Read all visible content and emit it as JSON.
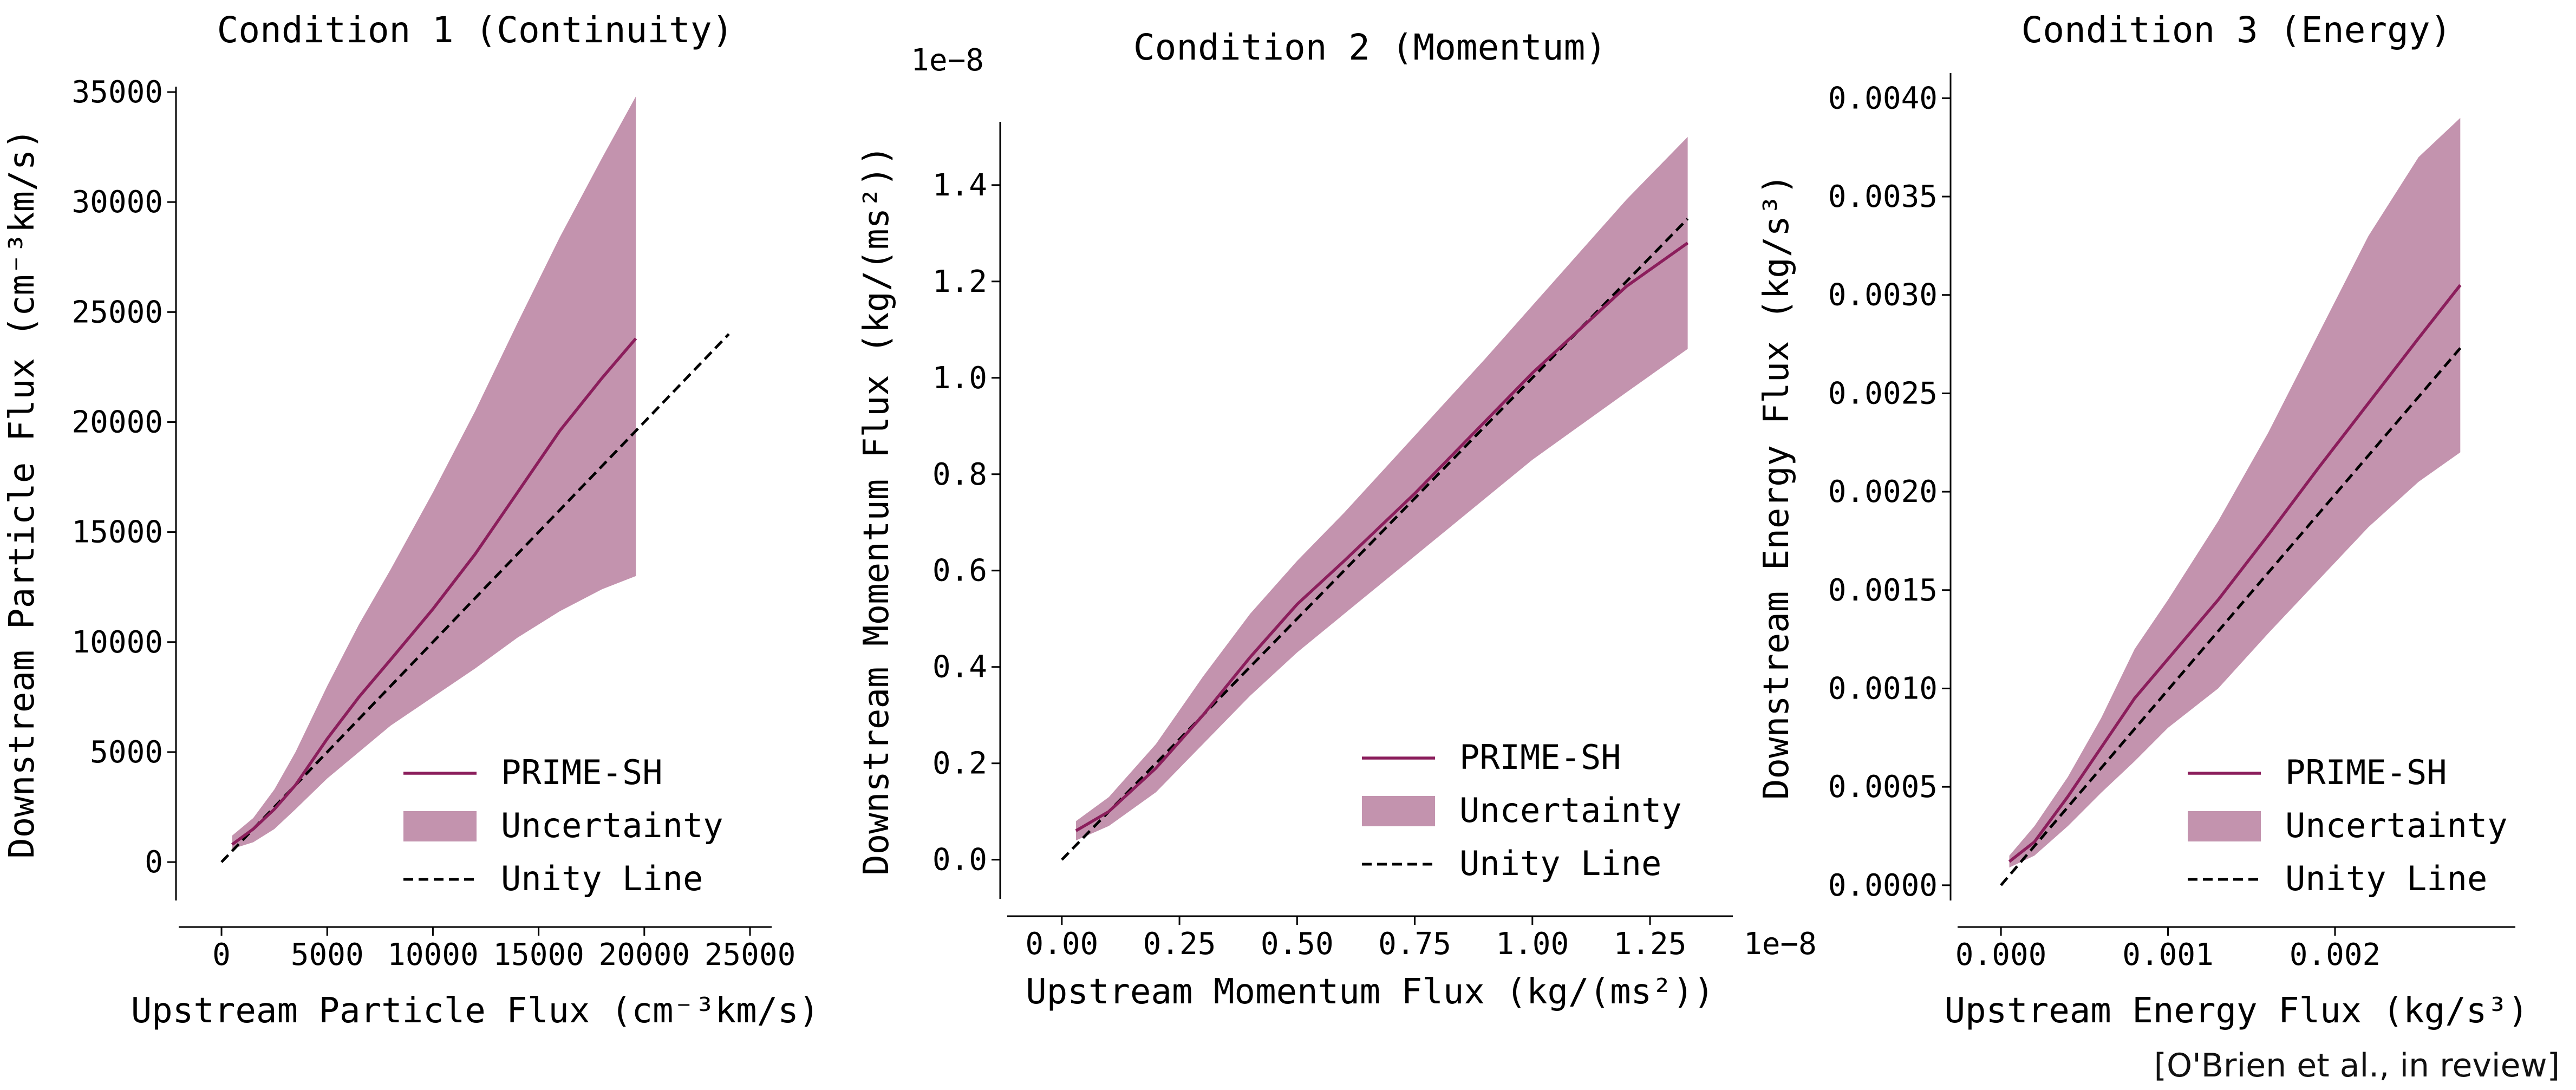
{
  "colors": {
    "line": "#8b1e5c",
    "band": "#c393ae",
    "unity": "#000000",
    "axis": "#000000"
  },
  "credit": "[O'Brien et al., in review]",
  "legend_labels": {
    "line": "PRIME-SH",
    "band": "Uncertainty",
    "unity": "Unity Line"
  },
  "chart_data": [
    {
      "type": "line",
      "title": "Condition 1 (Continuity)",
      "xlabel": "Upstream Particle Flux (cm⁻³km/s)",
      "ylabel": "Downstream Particle Flux (cm⁻³km/s)",
      "xlim": [
        -1000,
        25000
      ],
      "ylim": [
        -1500,
        35000
      ],
      "xticks": [
        0,
        5000,
        10000,
        15000,
        20000,
        25000
      ],
      "xtick_labels": [
        "0",
        "5000",
        "10000",
        "15000",
        "20000",
        "25000"
      ],
      "yticks": [
        0,
        5000,
        10000,
        15000,
        20000,
        25000,
        30000,
        35000
      ],
      "ytick_labels": [
        "0",
        "5000",
        "10000",
        "15000",
        "20000",
        "25000",
        "30000",
        "35000"
      ],
      "legend_position": "lower-right",
      "unity": [
        [
          0,
          0
        ],
        [
          24000,
          24000
        ]
      ],
      "series": [
        {
          "name": "PRIME-SH",
          "x": [
            500,
            1500,
            2500,
            3500,
            5000,
            6500,
            8000,
            10000,
            12000,
            14000,
            16000,
            18000,
            19600
          ],
          "y": [
            800,
            1500,
            2400,
            3500,
            5600,
            7500,
            9200,
            11500,
            14000,
            16800,
            19600,
            22000,
            23800
          ]
        },
        {
          "name": "Uncertainty",
          "x": [
            500,
            1500,
            2500,
            3500,
            5000,
            6500,
            8000,
            10000,
            12000,
            14000,
            16000,
            18000,
            19600
          ],
          "upper": [
            1200,
            2000,
            3300,
            5000,
            8000,
            10800,
            13300,
            16800,
            20500,
            24500,
            28400,
            32000,
            34800
          ],
          "lower": [
            600,
            900,
            1500,
            2400,
            3800,
            5000,
            6200,
            7500,
            8800,
            10200,
            11400,
            12400,
            13000
          ]
        }
      ]
    },
    {
      "type": "line",
      "title": "Condition 2 (Momentum)",
      "xlabel": "Upstream Momentum Flux (kg/(ms²))",
      "ylabel": "Downstream Momentum Flux (kg/(ms²))",
      "xlim": [
        -0.07,
        1.38
      ],
      "ylim": [
        -0.07,
        1.52
      ],
      "x_offset_label": "1e−8",
      "y_offset_label": "1e−8",
      "xticks": [
        0,
        0.25,
        0.5,
        0.75,
        1.0,
        1.25
      ],
      "xtick_labels": [
        "0.00",
        "0.25",
        "0.50",
        "0.75",
        "1.00",
        "1.25"
      ],
      "yticks": [
        0,
        0.2,
        0.4,
        0.6,
        0.8,
        1.0,
        1.2,
        1.4
      ],
      "ytick_labels": [
        "0.0",
        "0.2",
        "0.4",
        "0.6",
        "0.8",
        "1.0",
        "1.2",
        "1.4"
      ],
      "legend_position": "lower-right",
      "unity": [
        [
          0,
          0
        ],
        [
          1.33,
          1.33
        ]
      ],
      "series": [
        {
          "name": "PRIME-SH",
          "x": [
            0.03,
            0.1,
            0.2,
            0.3,
            0.4,
            0.5,
            0.6,
            0.75,
            0.9,
            1.0,
            1.1,
            1.2,
            1.33
          ],
          "y": [
            0.06,
            0.1,
            0.19,
            0.3,
            0.42,
            0.53,
            0.62,
            0.76,
            0.91,
            1.01,
            1.1,
            1.19,
            1.28
          ]
        },
        {
          "name": "Uncertainty",
          "x": [
            0.03,
            0.1,
            0.2,
            0.3,
            0.4,
            0.5,
            0.6,
            0.75,
            0.9,
            1.0,
            1.1,
            1.2,
            1.33
          ],
          "upper": [
            0.08,
            0.13,
            0.24,
            0.38,
            0.51,
            0.62,
            0.72,
            0.88,
            1.04,
            1.15,
            1.26,
            1.37,
            1.5
          ],
          "lower": [
            0.04,
            0.07,
            0.14,
            0.24,
            0.34,
            0.43,
            0.51,
            0.63,
            0.75,
            0.83,
            0.9,
            0.97,
            1.06
          ]
        }
      ]
    },
    {
      "type": "line",
      "title": "Condition 3 (Energy)",
      "xlabel": "Upstream Energy Flux (kg/s³)",
      "ylabel": "Downstream Energy Flux (kg/s³)",
      "xlim": [
        -0.00013,
        0.00295
      ],
      "ylim": [
        -5e-05,
        0.0041
      ],
      "xticks": [
        0,
        0.001,
        0.002
      ],
      "xtick_labels": [
        "0.000",
        "0.001",
        "0.002"
      ],
      "yticks": [
        0,
        0.0005,
        0.001,
        0.0015,
        0.002,
        0.0025,
        0.003,
        0.0035,
        0.004
      ],
      "ytick_labels": [
        "0.0000",
        "0.0005",
        "0.0010",
        "0.0015",
        "0.0020",
        "0.0025",
        "0.0030",
        "0.0035",
        "0.0040"
      ],
      "legend_position": "lower-right",
      "unity": [
        [
          0,
          0
        ],
        [
          0.00275,
          0.00273
        ]
      ],
      "series": [
        {
          "name": "PRIME-SH",
          "x": [
            5e-05,
            0.0002,
            0.0004,
            0.0006,
            0.0008,
            0.001,
            0.0013,
            0.0016,
            0.0019,
            0.0022,
            0.0025,
            0.00275
          ],
          "y": [
            0.00012,
            0.00022,
            0.00045,
            0.0007,
            0.00095,
            0.00115,
            0.00145,
            0.00178,
            0.00212,
            0.00245,
            0.00278,
            0.00305
          ]
        },
        {
          "name": "Uncertainty",
          "x": [
            5e-05,
            0.0002,
            0.0004,
            0.0006,
            0.0008,
            0.001,
            0.0013,
            0.0016,
            0.0019,
            0.0022,
            0.0025,
            0.00275
          ],
          "upper": [
            0.00015,
            0.0003,
            0.00055,
            0.00085,
            0.0012,
            0.00145,
            0.00185,
            0.0023,
            0.0028,
            0.0033,
            0.0037,
            0.0039
          ],
          "lower": [
            9e-05,
            0.00015,
            0.0003,
            0.00047,
            0.00063,
            0.0008,
            0.001,
            0.00128,
            0.00155,
            0.00182,
            0.00205,
            0.0022
          ]
        }
      ]
    }
  ]
}
